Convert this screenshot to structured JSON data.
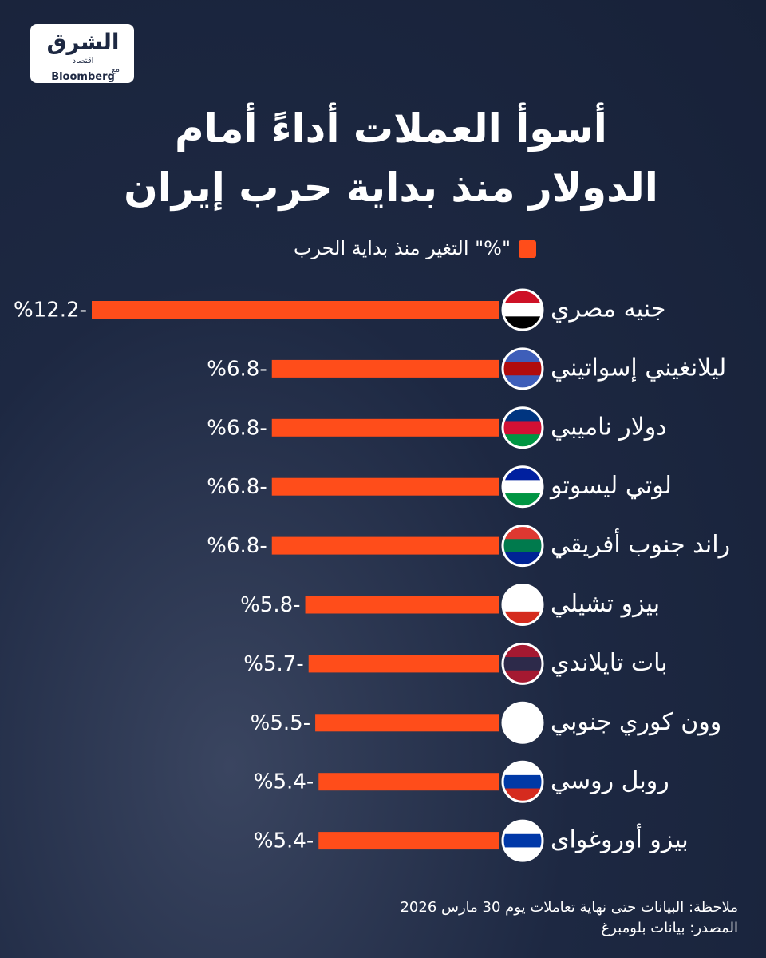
{
  "logo": {
    "name": "الشرق",
    "sub": "اقتصاد",
    "partner_prefix": "مع",
    "partner": "Bloomberg"
  },
  "chart_data": {
    "type": "bar",
    "title": [
      "أسوأ العملات أداءً أمام",
      "الدولار منذ بداية حرب إيران"
    ],
    "categories": [
      "جنيه مصري",
      "ليلانغيني إسواتيني",
      "دولار ناميبي",
      "لوتي ليسوتو",
      "راند جنوب أفريقي",
      "بيزو تشيلي",
      "بات تايلاندي",
      "وون كوري جنوبي",
      "روبل روسي",
      "بيزو أوروغواى"
    ],
    "series": [
      {
        "name": "التغير منذ بداية الحرب \"%\"",
        "color": "#ff4d1a",
        "values": [
          -12.2,
          -6.8,
          -6.8,
          -6.8,
          -6.8,
          -5.8,
          -5.7,
          -5.5,
          -5.4,
          -5.4
        ],
        "value_labels": [
          "%12.2-",
          "%6.8-",
          "%6.8-",
          "%6.8-",
          "%6.8-",
          "%5.8-",
          "%5.7-",
          "%5.5-",
          "%5.4-",
          "%5.4-"
        ]
      }
    ],
    "notes": [
      "ملاحظة: البيانات حتى نهاية تعاملات يوم 30 مارس 2026",
      "المصدر: بيانات بلومبرغ"
    ]
  }
}
